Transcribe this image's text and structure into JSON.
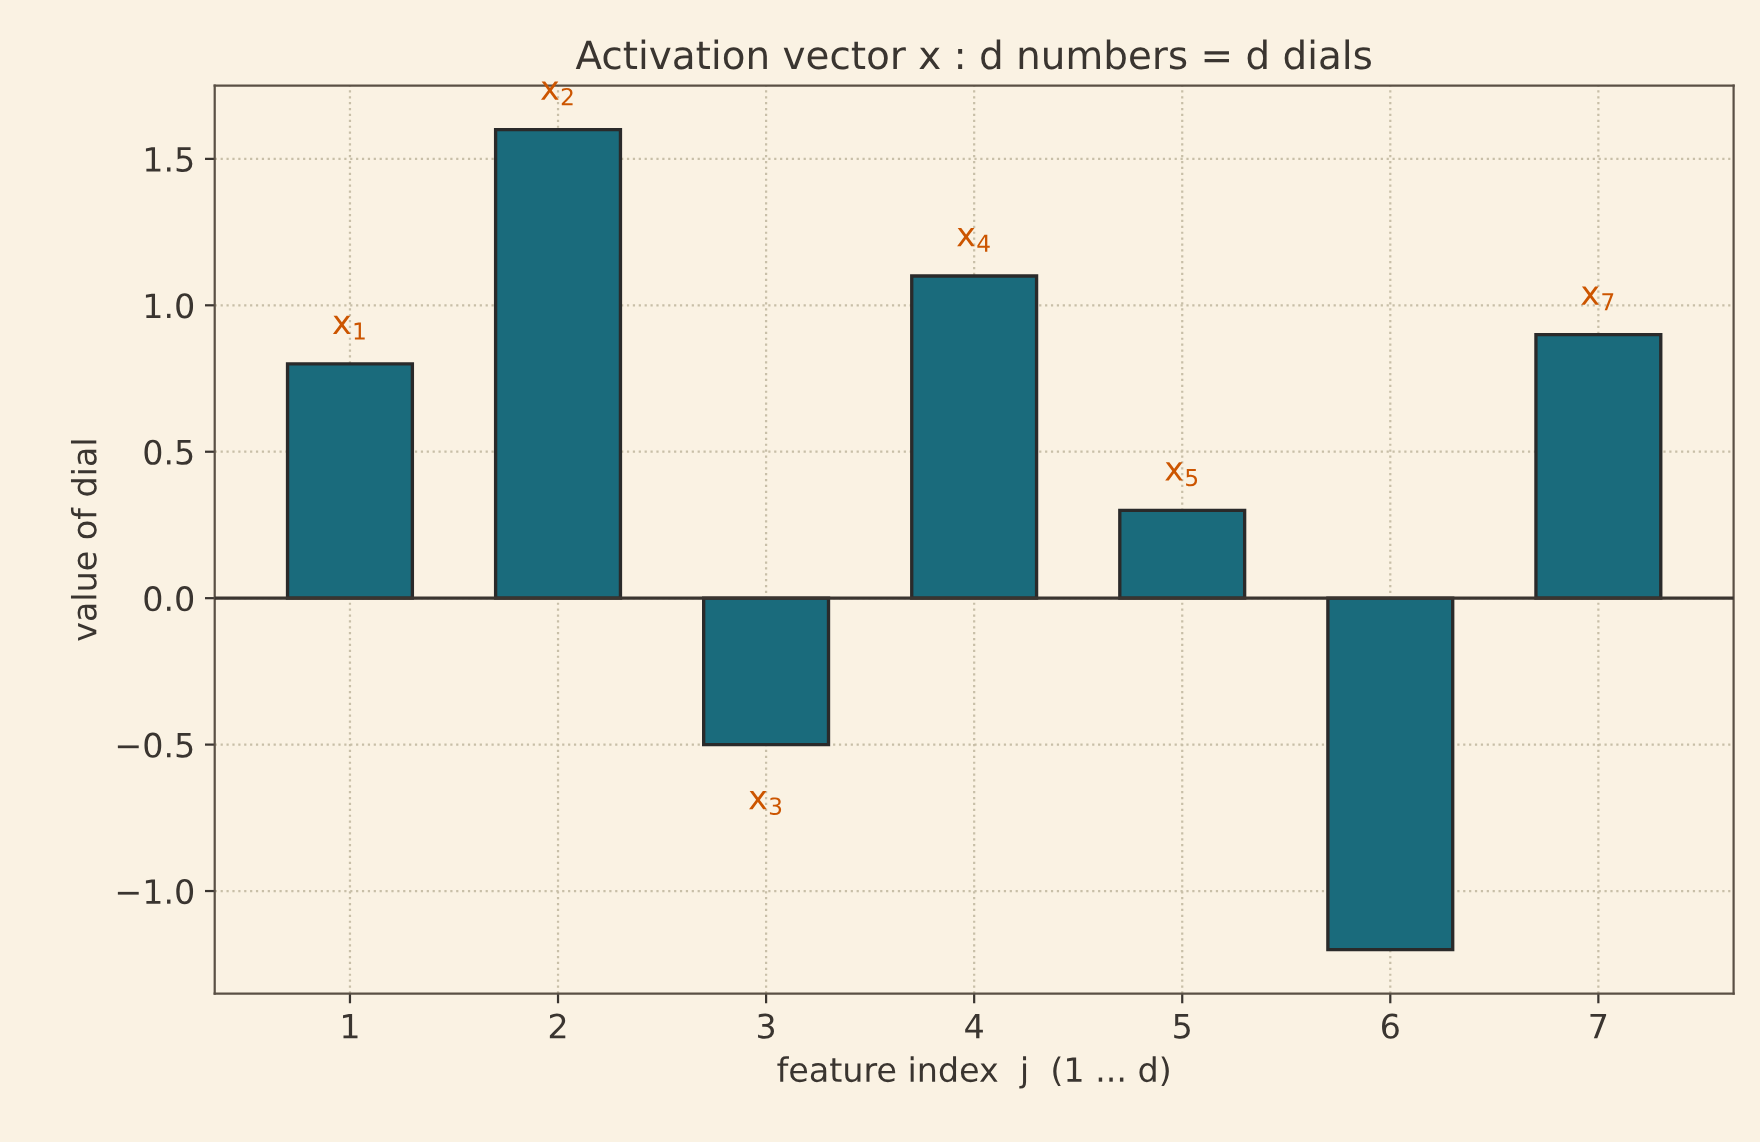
{
  "chart_data": {
    "type": "bar",
    "title": "Activation vector x : d numbers = d dials",
    "xlabel": "feature index  j  (1 ... d)",
    "ylabel": "value of dial",
    "categories": [
      "1",
      "2",
      "3",
      "4",
      "5",
      "6",
      "7"
    ],
    "values": [
      0.8,
      1.6,
      -0.5,
      1.1,
      0.3,
      -1.2,
      0.9
    ],
    "color": "#1a6b7c",
    "ylim": [
      -1.35,
      1.75
    ],
    "yticks": [
      {
        "value": -1.0,
        "label": "−1.0"
      },
      {
        "value": -0.5,
        "label": "−0.5"
      },
      {
        "value": 0.0,
        "label": "0.0"
      },
      {
        "value": 0.5,
        "label": "0.5"
      },
      {
        "value": 1.0,
        "label": "1.0"
      },
      {
        "value": 1.5,
        "label": "1.5"
      }
    ],
    "grid": true,
    "legend": false,
    "ref_lines": [
      {
        "axis": "y",
        "value": 0,
        "color": "#3a3530"
      }
    ],
    "annotations": [
      {
        "text": "x$_{1}$",
        "x": "1",
        "y": 0.8
      },
      {
        "text": "x$_{2}$",
        "x": "2",
        "y": 1.6
      },
      {
        "text": "x$_{3}$",
        "x": "3",
        "y": -0.5
      },
      {
        "text": "x$_{4}$",
        "x": "4",
        "y": 1.1
      },
      {
        "text": "x$_{5}$",
        "x": "5",
        "y": 0.3
      },
      {
        "text": "x$_{7}$",
        "x": "7",
        "y": 0.9
      }
    ]
  }
}
